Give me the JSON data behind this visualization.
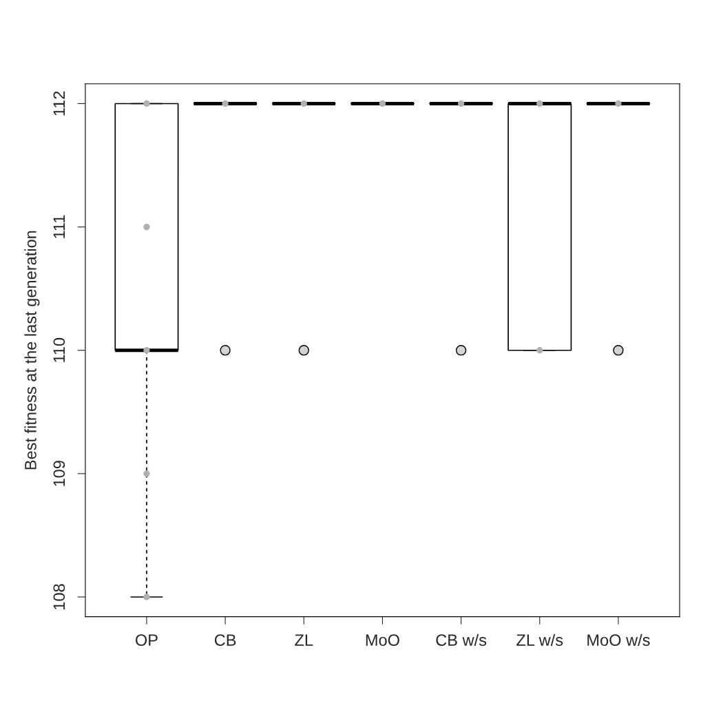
{
  "chart_data": {
    "type": "box",
    "ylabel": "Best fitness at the last generation",
    "categories": [
      "OP",
      "CB",
      "ZL",
      "MoO",
      "CB w/s",
      "ZL w/s",
      "MoO w/s"
    ],
    "boxes": [
      {
        "low": 108,
        "q1": 110,
        "median": 110,
        "q3": 112,
        "high": 112
      },
      {
        "low": 112,
        "q1": 112,
        "median": 112,
        "q3": 112,
        "high": 112,
        "outliers": [
          110
        ]
      },
      {
        "low": 112,
        "q1": 112,
        "median": 112,
        "q3": 112,
        "high": 112,
        "outliers": [
          110
        ]
      },
      {
        "low": 112,
        "q1": 112,
        "median": 112,
        "q3": 112,
        "high": 112
      },
      {
        "low": 112,
        "q1": 112,
        "median": 112,
        "q3": 112,
        "high": 112,
        "outliers": [
          110
        ]
      },
      {
        "low": 110,
        "q1": 110,
        "median": 112,
        "q3": 112,
        "high": 112
      },
      {
        "low": 112,
        "q1": 112,
        "median": 112,
        "q3": 112,
        "high": 112,
        "outliers": [
          110
        ]
      }
    ],
    "series": [
      {
        "type": "scatter",
        "color": "#b0b0b0",
        "marker": "circle",
        "x": [
          "OP",
          "OP",
          "OP",
          "OP",
          "OP",
          "CB",
          "ZL",
          "MoO",
          "CB w/s",
          "ZL w/s",
          "ZL w/s",
          "MoO w/s"
        ],
        "values": [
          112,
          111,
          110,
          109,
          108,
          112,
          112,
          112,
          112,
          112,
          110,
          112
        ]
      }
    ],
    "ylim": [
      107.84,
      112.16
    ],
    "yticks": [
      108,
      109,
      110,
      111,
      112
    ],
    "grid": false
  }
}
